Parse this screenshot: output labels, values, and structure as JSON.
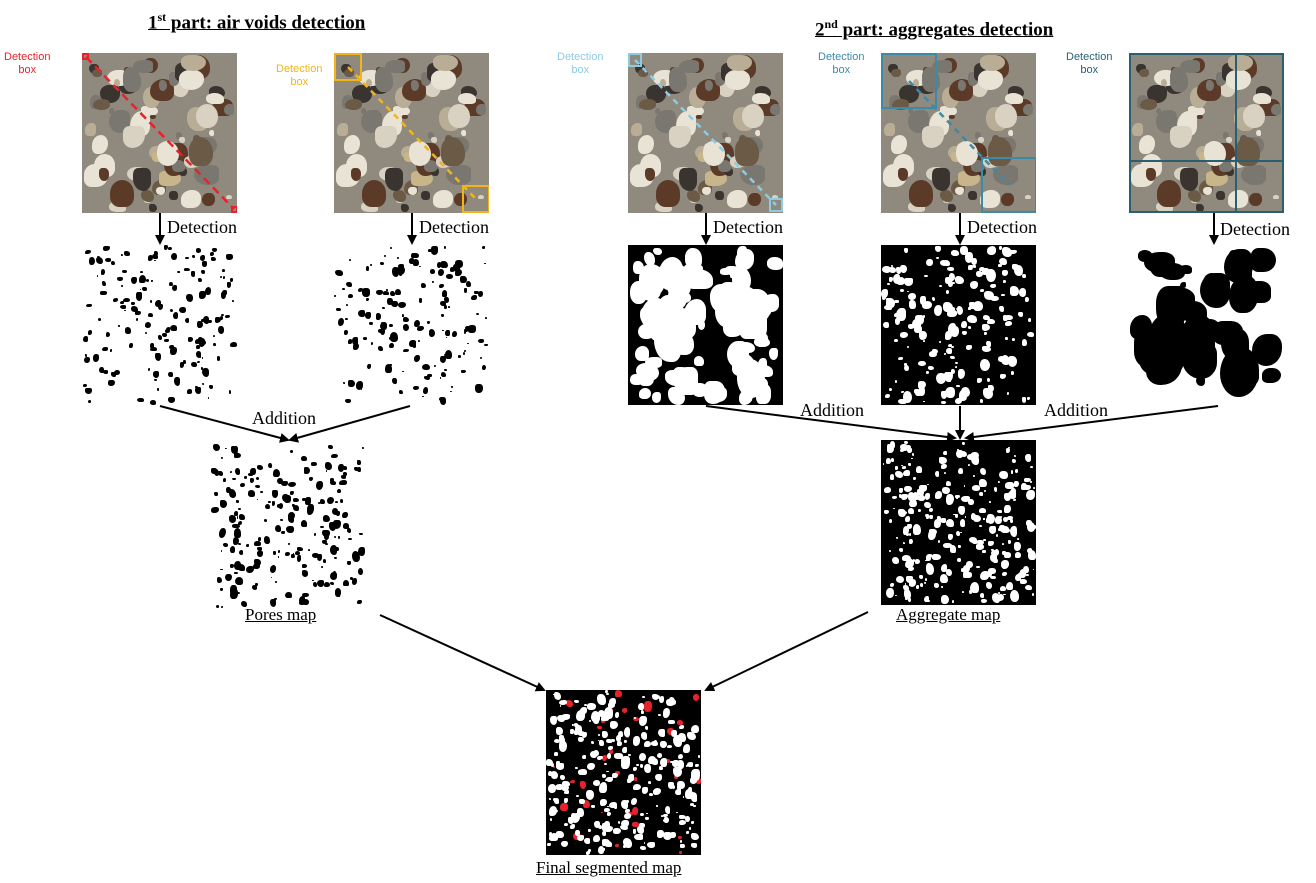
{
  "titles": {
    "part1_prefix": "1",
    "part1_sup": "st",
    "part1_rest": " part: air voids detection",
    "part2_prefix": "2",
    "part2_sup": "nd",
    "part2_rest": " part: aggregates detection"
  },
  "detection_box_labels": {
    "line1": "Detection",
    "line2": "box"
  },
  "steps": {
    "detection": "Detection",
    "addition": "Addition"
  },
  "maps": {
    "pores": "Pores map",
    "aggregate": "Aggregate map",
    "final": "Final segmented map"
  },
  "colors": {
    "box_red": "#e8222a",
    "box_yellow": "#f2b418",
    "box_light_blue": "#8ecbe0",
    "box_teal": "#3a8aa8",
    "box_dark_teal": "#2a5f72",
    "pore_red": "#e8222a"
  }
}
